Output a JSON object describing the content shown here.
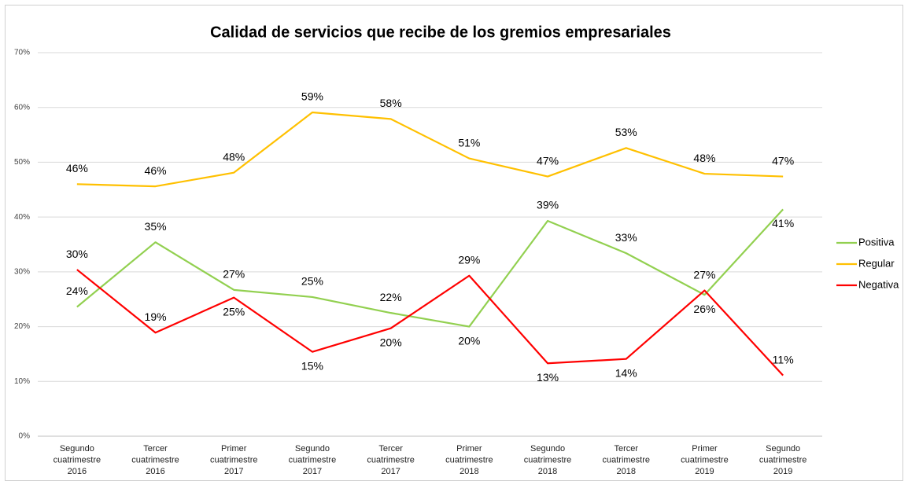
{
  "chart_data": {
    "type": "line",
    "title": "Calidad de servicios que recibe de los gremios empresariales",
    "categories": [
      [
        "Segundo",
        "cuatrimestre",
        "2016"
      ],
      [
        "Tercer",
        "cuatrimestre",
        "2016"
      ],
      [
        "Primer",
        "cuatrimestre",
        "2017"
      ],
      [
        "Segundo",
        "cuatrimestre",
        "2017"
      ],
      [
        "Tercer",
        "cuatrimestre",
        "2017"
      ],
      [
        "Primer",
        "cuatrimestre",
        "2018"
      ],
      [
        "Segundo",
        "cuatrimestre",
        "2018"
      ],
      [
        "Tercer",
        "cuatrimestre",
        "2018"
      ],
      [
        "Primer",
        "cuatrimestre",
        "2019"
      ],
      [
        "Segundo",
        "cuatrimestre",
        "2019"
      ]
    ],
    "series": [
      {
        "name": "Positiva",
        "color": "#92d050",
        "values": [
          23.6,
          35.4,
          26.7,
          25.4,
          22.5,
          20.0,
          39.3,
          33.4,
          25.8,
          41.4
        ],
        "value_labels": [
          "24%",
          "35%",
          "27%",
          "25%",
          "22%",
          "20%",
          "39%",
          "33%",
          "26%",
          "41%"
        ]
      },
      {
        "name": "Regular",
        "color": "#ffc000",
        "values": [
          46.0,
          45.6,
          48.1,
          59.1,
          57.9,
          50.7,
          47.4,
          52.6,
          47.9,
          47.4
        ],
        "value_labels": [
          "46%",
          "46%",
          "48%",
          "59%",
          "58%",
          "51%",
          "47%",
          "53%",
          "48%",
          "47%"
        ]
      },
      {
        "name": "Negativa",
        "color": "#ff0000",
        "values": [
          30.4,
          18.9,
          25.3,
          15.4,
          19.7,
          29.3,
          13.3,
          14.1,
          26.6,
          11.1
        ],
        "value_labels": [
          "30%",
          "19%",
          "25%",
          "15%",
          "20%",
          "29%",
          "13%",
          "14%",
          "27%",
          "11%"
        ]
      }
    ],
    "ylim": [
      0,
      70
    ],
    "yticks": [
      {
        "value": 0,
        "label": "0%"
      },
      {
        "value": 10,
        "label": "10%"
      },
      {
        "value": 20,
        "label": "20%"
      },
      {
        "value": 30,
        "label": "30%"
      },
      {
        "value": 40,
        "label": "40%"
      },
      {
        "value": 50,
        "label": "50%"
      },
      {
        "value": 60,
        "label": "60%"
      },
      {
        "value": 70,
        "label": "70%"
      }
    ],
    "grid": true,
    "legend": "right"
  }
}
